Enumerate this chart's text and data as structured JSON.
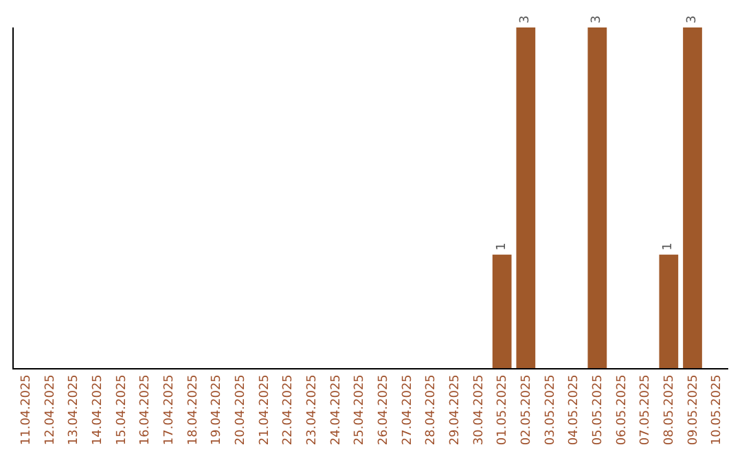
{
  "chart_data": {
    "type": "bar",
    "categories": [
      "11.04.2025",
      "12.04.2025",
      "13.04.2025",
      "14.04.2025",
      "15.04.2025",
      "16.04.2025",
      "17.04.2025",
      "18.04.2025",
      "19.04.2025",
      "20.04.2025",
      "21.04.2025",
      "22.04.2025",
      "23.04.2025",
      "24.04.2025",
      "25.04.2025",
      "26.04.2025",
      "27.04.2025",
      "28.04.2025",
      "29.04.2025",
      "30.04.2025",
      "01.05.2025",
      "02.05.2025",
      "03.05.2025",
      "04.05.2025",
      "05.05.2025",
      "06.05.2025",
      "07.05.2025",
      "08.05.2025",
      "09.05.2025",
      "10.05.2025"
    ],
    "values": [
      null,
      null,
      null,
      null,
      null,
      null,
      null,
      null,
      null,
      null,
      null,
      null,
      null,
      null,
      null,
      null,
      null,
      null,
      null,
      null,
      1,
      3,
      null,
      null,
      3,
      null,
      null,
      1,
      3,
      null
    ],
    "color": "#a0592a",
    "data_labels": true,
    "tick_labels": "x"
  }
}
